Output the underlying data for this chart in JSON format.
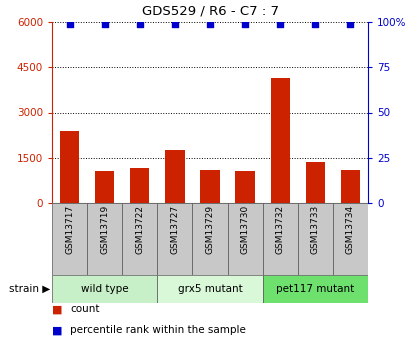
{
  "title": "GDS529 / R6 - C7 : 7",
  "samples": [
    "GSM13717",
    "GSM13719",
    "GSM13722",
    "GSM13727",
    "GSM13729",
    "GSM13730",
    "GSM13732",
    "GSM13733",
    "GSM13734"
  ],
  "counts": [
    2400,
    1050,
    1150,
    1750,
    1100,
    1050,
    4150,
    1350,
    1100
  ],
  "percentile_ranks": [
    99,
    99,
    99,
    99,
    99,
    99,
    99,
    99,
    99
  ],
  "ylim_left": [
    0,
    6000
  ],
  "ylim_right": [
    0,
    100
  ],
  "yticks_left": [
    0,
    1500,
    3000,
    4500,
    6000
  ],
  "yticks_right": [
    0,
    25,
    50,
    75,
    100
  ],
  "groups": [
    {
      "label": "wild type",
      "start": 0,
      "end": 3,
      "color": "#c8f0c8"
    },
    {
      "label": "grx5 mutant",
      "start": 3,
      "end": 6,
      "color": "#d8f8d8"
    },
    {
      "label": "pet117 mutant",
      "start": 6,
      "end": 9,
      "color": "#6ee06e"
    }
  ],
  "bar_color": "#cc2200",
  "dot_color": "#0000cc",
  "strain_label": "strain",
  "legend_count_label": "count",
  "legend_percentile_label": "percentile rank within the sample",
  "bg_color": "#ffffff",
  "tick_label_area_color": "#c8c8c8",
  "grid_color": "#000000",
  "left_tick_color": "#cc2200",
  "right_tick_color": "#0000cc"
}
